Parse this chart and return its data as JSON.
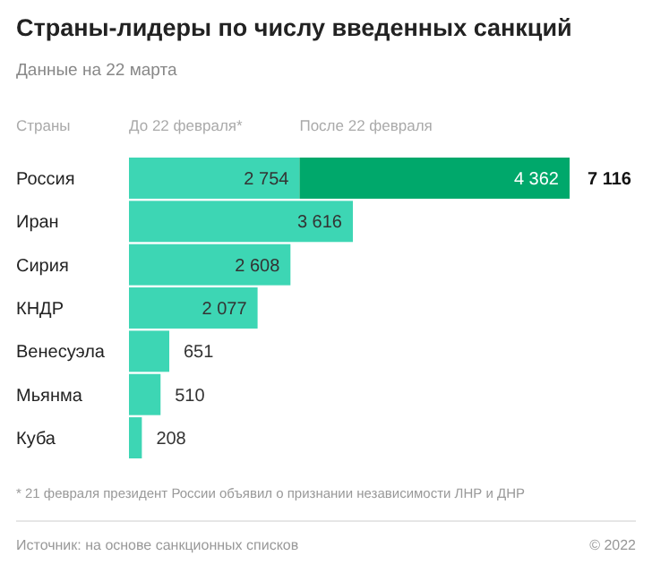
{
  "chart_data": {
    "type": "bar",
    "orientation": "horizontal",
    "stacked": true,
    "title": "Страны-лидеры по числу введенных санкций",
    "subtitle": "Данные на 22 марта",
    "ylabel": "Страны",
    "categories": [
      "Россия",
      "Иран",
      "Сирия",
      "КНДР",
      "Венесуэла",
      "Мьянма",
      "Куба"
    ],
    "series": [
      {
        "name": "До 22 февраля*",
        "color": "#3dd6b4",
        "values": [
          2754,
          3616,
          2608,
          2077,
          651,
          510,
          208
        ],
        "value_labels": [
          "2 754",
          "3 616",
          "2 608",
          "2 077",
          "651",
          "510",
          "208"
        ]
      },
      {
        "name": "После 22 февраля",
        "color": "#00a86b",
        "values": [
          4362,
          null,
          null,
          null,
          null,
          null,
          null
        ],
        "value_labels": [
          "4 362",
          null,
          null,
          null,
          null,
          null,
          null
        ]
      }
    ],
    "totals": [
      "7 116",
      null,
      null,
      null,
      null,
      null,
      null
    ],
    "legend": "top",
    "annotations": [
      "* 21 февраля президент России объявил о признании независимости ЛНР и ДНР",
      "Источник: на основе санкционных списков",
      "© 2022"
    ]
  }
}
